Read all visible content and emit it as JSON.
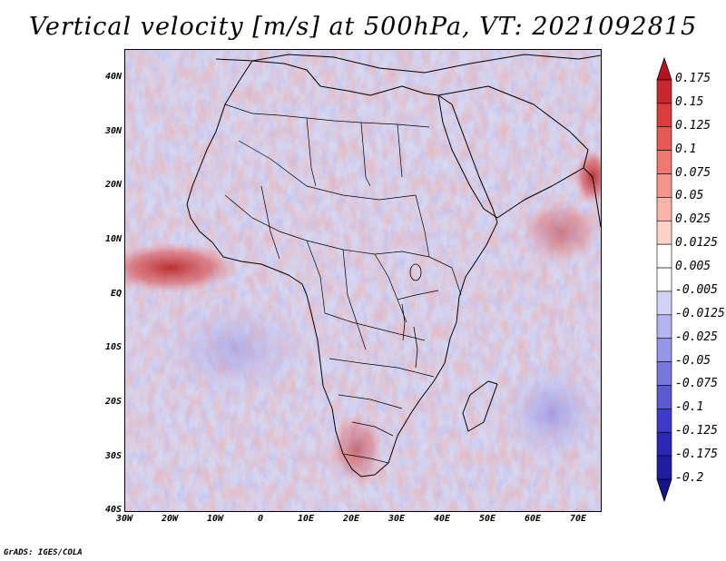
{
  "title": "Vertical velocity [m/s] at 500hPa, VT: 2021092815",
  "credit": "GrADS: IGES/COLA",
  "map": {
    "variable": "Vertical velocity",
    "units": "m/s",
    "level": "500hPa",
    "valid_time": "2021092815",
    "lon_range": [
      -30,
      75
    ],
    "lat_range": [
      -40,
      45
    ],
    "lat_labels": [
      "40N",
      "30N",
      "20N",
      "10N",
      "EQ",
      "10S",
      "20S",
      "30S",
      "40S"
    ],
    "lon_labels": [
      "30W",
      "20W",
      "10W",
      "0",
      "10E",
      "20E",
      "30E",
      "40E",
      "50E",
      "60E",
      "70E"
    ]
  },
  "colorbar": {
    "levels": [
      "0.175",
      "0.15",
      "0.125",
      "0.1",
      "0.075",
      "0.05",
      "0.025",
      "0.0125",
      "0.005",
      "-0.005",
      "-0.0125",
      "-0.025",
      "-0.05",
      "-0.075",
      "-0.1",
      "-0.125",
      "-0.175",
      "-0.2"
    ],
    "colors": [
      "#b4141e",
      "#c8282d",
      "#dc3c3c",
      "#e65a55",
      "#f07870",
      "#f5968c",
      "#fab4aa",
      "#fcd2c8",
      "#ffffff",
      "#ffffff",
      "#d2d2f5",
      "#b4b4f0",
      "#9696e6",
      "#7878dc",
      "#5a5ad2",
      "#3c3cc8",
      "#2828b4",
      "#1e1ea0",
      "#14148c"
    ]
  }
}
